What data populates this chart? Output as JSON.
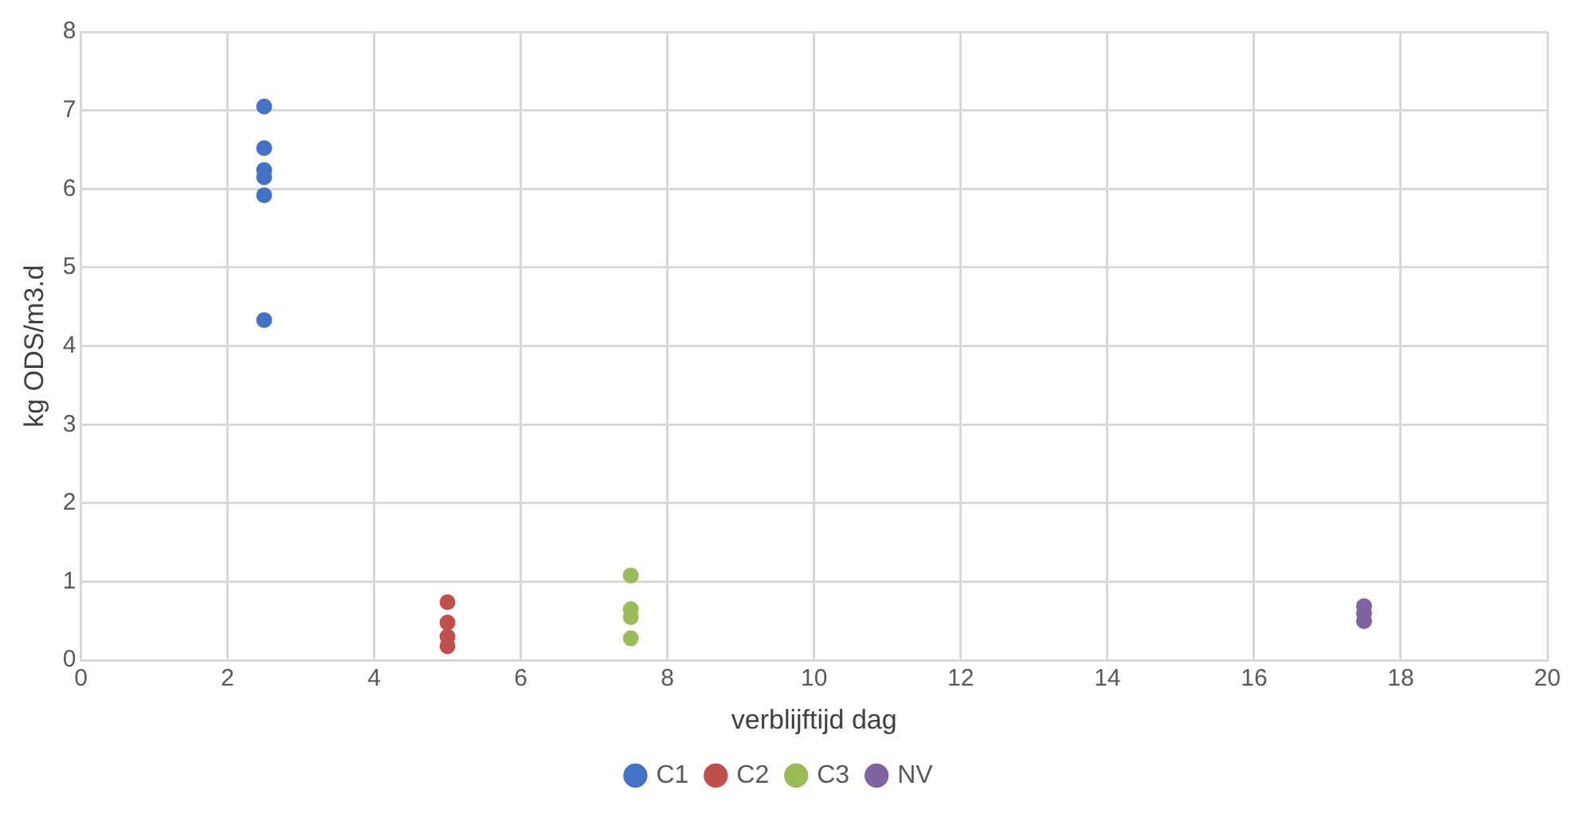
{
  "chart_data": {
    "type": "scatter",
    "xlabel": "verblijftijd dag",
    "ylabel": "kg ODS/m3.d",
    "xlim": [
      0,
      20
    ],
    "xticks": [
      0,
      2,
      4,
      6,
      8,
      10,
      12,
      14,
      16,
      18,
      20
    ],
    "ylim": [
      0,
      8
    ],
    "yticks": [
      0,
      1,
      2,
      3,
      4,
      5,
      6,
      7,
      8
    ],
    "grid": true,
    "legend": "bottom",
    "marker": "circle",
    "series": [
      {
        "name": "C1",
        "color": "#4472c4",
        "x": [
          2.5,
          2.5,
          2.5,
          2.5,
          2.5,
          2.5
        ],
        "values": [
          7.05,
          6.52,
          6.24,
          6.15,
          5.92,
          4.33
        ]
      },
      {
        "name": "C2",
        "color": "#c0504d",
        "x": [
          5,
          5,
          5,
          5
        ],
        "values": [
          0.74,
          0.48,
          0.3,
          0.18
        ]
      },
      {
        "name": "C3",
        "color": "#9bbb59",
        "x": [
          7.5,
          7.5,
          7.5,
          7.5
        ],
        "values": [
          1.08,
          0.65,
          0.55,
          0.28
        ]
      },
      {
        "name": "NV",
        "color": "#8064a2",
        "x": [
          17.5,
          17.5,
          17.5
        ],
        "values": [
          0.69,
          0.6,
          0.5
        ]
      }
    ]
  }
}
